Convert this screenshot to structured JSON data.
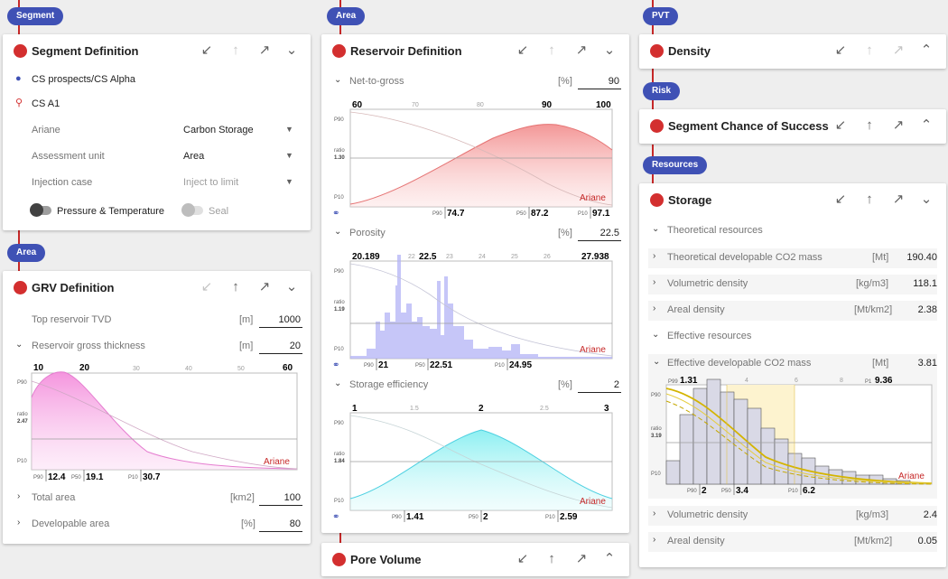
{
  "tags": {
    "segment": "Segment",
    "area1": "Area",
    "area2": "Area",
    "pvt": "PVT",
    "risk": "Risk",
    "resources": "Resources"
  },
  "colors": {
    "accent": "#3f51b5",
    "dot": "#d32f2f"
  },
  "icons": {
    "min": "↙",
    "up": "↑",
    "max": "↗",
    "down": "⌄",
    "expand": "⌃",
    "link": "🔗"
  },
  "segment_def": {
    "title": "Segment Definition",
    "prospect": "CS prospects/CS Alpha",
    "segment": "CS A1",
    "fields": [
      {
        "label": "Ariane",
        "value": "Carbon Storage"
      },
      {
        "label": "Assessment unit",
        "value": "Area"
      },
      {
        "label": "Injection case",
        "value": "Inject to limit"
      }
    ],
    "toggle1": "Pressure & Temperature",
    "toggle2": "Seal"
  },
  "grv": {
    "title": "GRV Definition",
    "top_label": "Top reservoir TVD",
    "top_unit": "[m]",
    "top_value": "1000",
    "thick_label": "Reservoir gross thickness",
    "thick_unit": "[m]",
    "thick_value": "20",
    "total_label": "Total area",
    "total_unit": "[km2]",
    "total_value": "100",
    "dev_label": "Developable area",
    "dev_unit": "[%]",
    "dev_value": "80",
    "chart": {
      "ticks": [
        "10",
        "20",
        "30",
        "40",
        "50",
        "60"
      ],
      "ratio": "2.47",
      "p90": "12.4",
      "p50": "19.1",
      "p10": "30.7"
    }
  },
  "reservoir": {
    "title": "Reservoir Definition",
    "ntg_label": "Net-to-gross",
    "ntg_unit": "[%]",
    "ntg_value": "90",
    "ntg_chart": {
      "ticks": [
        "60",
        "70",
        "80",
        "90",
        "100"
      ],
      "ratio": "1.30",
      "p90": "74.7",
      "p50": "87.2",
      "p10": "97.1"
    },
    "por_label": "Porosity",
    "por_unit": "[%]",
    "por_value": "22.5",
    "por_chart": {
      "ticks": [
        "20.189",
        "22",
        "22.5",
        "23",
        "24",
        "25",
        "26",
        "27.938"
      ],
      "ratio": "1.19",
      "p90": "21",
      "p50": "22.51",
      "p10": "24.95"
    },
    "se_label": "Storage efficiency",
    "se_unit": "[%]",
    "se_value": "2",
    "se_chart": {
      "ticks": [
        "1",
        "1.5",
        "2",
        "2.5",
        "3"
      ],
      "ratio": "1.84",
      "p90": "1.41",
      "p50": "2",
      "p10": "2.59"
    }
  },
  "pore": {
    "title": "Pore Volume"
  },
  "density": {
    "title": "Density"
  },
  "risk": {
    "title": "Segment Chance of Success"
  },
  "storage": {
    "title": "Storage",
    "theo_label": "Theoretical resources",
    "theo_rows": [
      {
        "label": "Theoretical developable CO2 mass",
        "unit": "[Mt]",
        "value": "190.40"
      },
      {
        "label": "Volumetric density",
        "unit": "[kg/m3]",
        "value": "118.1"
      },
      {
        "label": "Areal density",
        "unit": "[Mt/km2]",
        "value": "2.38"
      }
    ],
    "eff_label": "Effective resources",
    "eff_mass_label": "Effective developable CO2 mass",
    "eff_mass_unit": "[Mt]",
    "eff_mass_value": "3.81",
    "chart": {
      "ticks": [
        "1.31",
        "4",
        "6",
        "8",
        "9.36"
      ],
      "p99": "P99",
      "p1": "P1",
      "ratio": "3.19",
      "p90": "2",
      "p50": "3.4",
      "p10": "6.2"
    },
    "eff_rows": [
      {
        "label": "Volumetric density",
        "unit": "[kg/m3]",
        "value": "2.4"
      },
      {
        "label": "Areal density",
        "unit": "[Mt/km2]",
        "value": "0.05"
      }
    ]
  },
  "chart_common": {
    "p90": "P90",
    "p50": "P50",
    "p10": "P10",
    "ratio": "ratio",
    "brand": "Ariane"
  }
}
